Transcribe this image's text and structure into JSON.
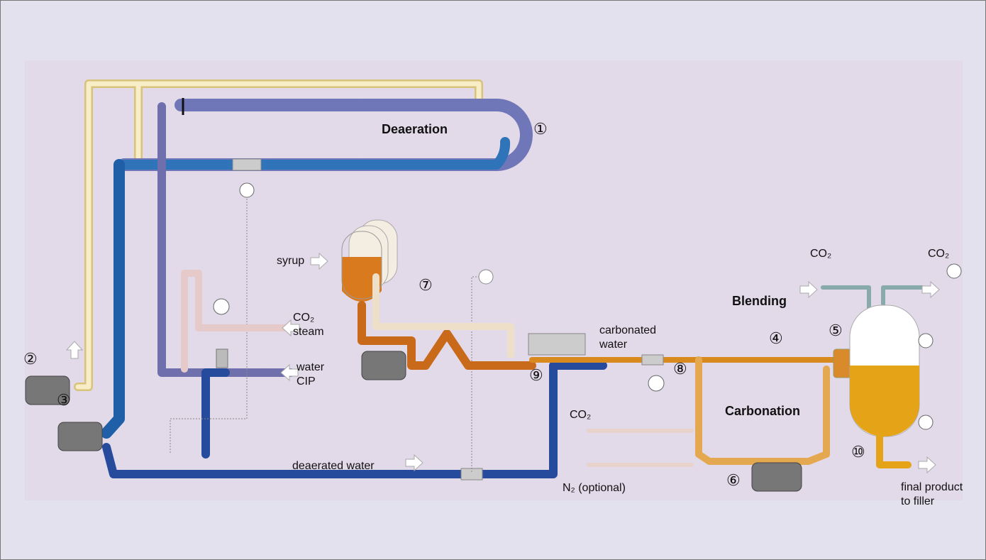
{
  "sections": {
    "deaeration": "Deaeration",
    "blending": "Blending",
    "carbonation": "Carbonation"
  },
  "markers": [
    "①",
    "②",
    "③",
    "④",
    "⑤",
    "⑥",
    "⑦",
    "⑧",
    "⑨",
    "⑩"
  ],
  "labels": {
    "syrup": "syrup",
    "co2_steam": [
      "CO₂",
      "steam"
    ],
    "water_cip": [
      "water",
      "CIP"
    ],
    "carbonated_water": [
      "carbonated",
      "water"
    ],
    "co2_blending_in": "CO₂",
    "co2_blending_out": "CO₂",
    "co2_carbonation": "CO₂",
    "n2": "N₂ (optional)",
    "deaerated_water": "deaerated water",
    "final_product": [
      "final product",
      "to filler"
    ]
  }
}
